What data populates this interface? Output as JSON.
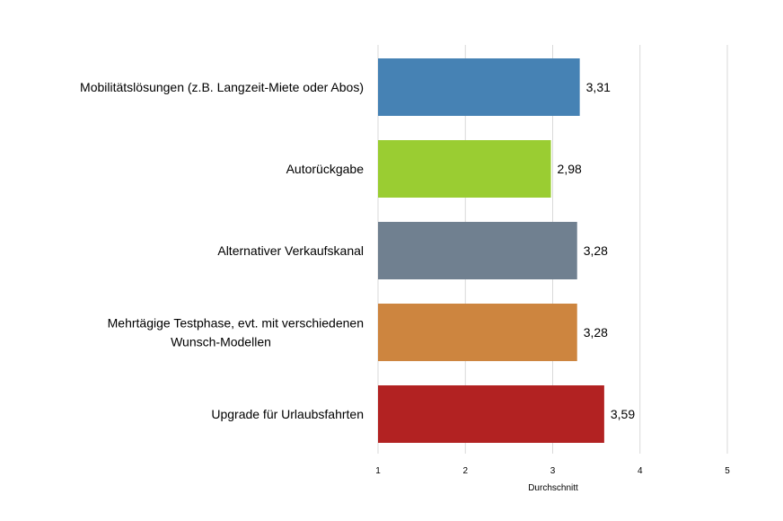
{
  "chart_data": {
    "type": "bar",
    "orientation": "horizontal",
    "categories": [
      [
        "Mobilitätslösungen (z.B. Langzeit-Miete oder Abos)"
      ],
      [
        "Autorückgabe"
      ],
      [
        "Alternativer Verkaufskanal"
      ],
      [
        "Mehrtägige Testphase, evt. mit verschiedenen",
        "Wunsch-Modellen"
      ],
      [
        "Upgrade für Urlaubsfahrten"
      ]
    ],
    "values": [
      3.31,
      2.98,
      3.28,
      3.28,
      3.59
    ],
    "value_labels": [
      "3,31",
      "2,98",
      "3,28",
      "3,28",
      "3,59"
    ],
    "colors": [
      "#4682b4",
      "#9acd32",
      "#708090",
      "#cd853f",
      "#b22222"
    ],
    "xlabel": "Durchschnitt",
    "xlim": [
      1,
      5
    ],
    "xticks": [
      1,
      2,
      3,
      4,
      5
    ],
    "grid": true,
    "legend": false
  }
}
